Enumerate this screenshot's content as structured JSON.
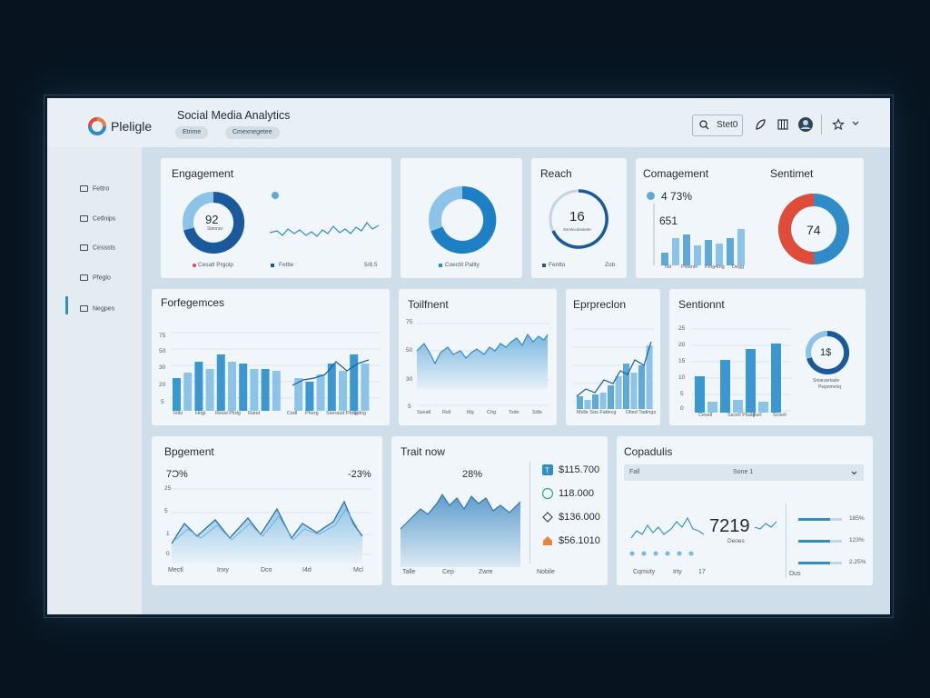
{
  "app": {
    "brand": "Pleligle",
    "title": "Social Media Analytics",
    "chips": [
      "Etrime",
      "Cmexnegetee"
    ]
  },
  "topbar": {
    "search_text": "Stet0"
  },
  "sidebar": {
    "items": [
      "Fettro",
      "Cetlnips",
      "Cesssts",
      "Pfeglo",
      "Negpes"
    ]
  },
  "cards": {
    "engagement": {
      "title": "Engagement",
      "center_value": "92",
      "center_sub": "Sinnnor",
      "legend": [
        "Cesatl Prgolp",
        "Fettle",
        "5/8.5"
      ]
    },
    "donut2": {
      "legend": "Coectit Pallty"
    },
    "reach": {
      "title": "Reach",
      "center_value": "16",
      "center_sub": "Ssmlncdseterle",
      "legend": [
        "Fentto",
        "Zob"
      ]
    },
    "comagement": {
      "title": "Comagement",
      "stat1": "4 73%",
      "stat2": "651",
      "xlabels": [
        "Nd",
        "Pxtenin",
        "Pmg4lng",
        "Degg"
      ]
    },
    "sentimet": {
      "title": "Sentimet",
      "center_value": "74"
    },
    "forfegemces": {
      "title": "Forfegemces",
      "ylabels": [
        "75",
        "50",
        "30",
        "20",
        "5"
      ],
      "xlabels": [
        "Idikt",
        "Hngl",
        "Ressl Pltdg",
        "Rand",
        "Cedl",
        "Pherg",
        "Sseraud Pbng",
        "Sdlng"
      ]
    },
    "toilfnent": {
      "title": "Toilfnent",
      "ylabels": [
        "75",
        "50",
        "30",
        "5"
      ],
      "xlabels": [
        "Sseatl",
        "Rell",
        "Mg",
        "Chg",
        "Tsdo",
        "Sdls"
      ]
    },
    "eprpreclon": {
      "title": "Eprpreclon",
      "xlabels": [
        "Mxlle Sas Fatlecg",
        "Dlted Tadings"
      ]
    },
    "sentionnt": {
      "title": "Sentionnt",
      "ylabels": [
        "25",
        "20",
        "15",
        "10",
        "5",
        "0"
      ],
      "xlabels": [
        "Cesell",
        "Sscell Pbalg",
        "Bsrl",
        "Scsell"
      ],
      "donut_value": "1$",
      "donut_sub": "Sntarasrlasle",
      "donut_sub2": "Pwpnmeriq"
    },
    "bpgement": {
      "title": "Bpgement",
      "left_value": "7Ɔ%",
      "right_value": "-23%",
      "ylabels": [
        "25",
        "5",
        "1",
        "0"
      ],
      "xlabels": [
        "Mectl",
        "Inxy",
        "Dco",
        "I4d",
        "Mcl"
      ]
    },
    "traitnow": {
      "title": "Trait now",
      "value": "28%",
      "xlabels": [
        "Talle",
        "Cep",
        "Zwre",
        "Nobile"
      ],
      "items": [
        "$115.700",
        "118.000",
        "$136.000",
        "$56.1010"
      ]
    },
    "copadulis": {
      "title": "Copadulis",
      "dropdown_left": "Fall",
      "dropdown_value": "Sone 1",
      "big_value": "7219",
      "big_sub": "Deoes",
      "xlabels": [
        "Cqmuty",
        "Irty",
        "17"
      ],
      "bars": [
        {
          "label": "185%",
          "value": 0.73
        },
        {
          "label": "123%",
          "value": 0.73
        },
        {
          "label": "2.25%",
          "value": 0.73
        }
      ],
      "bottom_label": "Dus"
    }
  },
  "colors": {
    "accent": "#2f8cc9",
    "dark": "#1a5a9c",
    "light": "#8cc3e6",
    "red": "#e04c3a"
  }
}
